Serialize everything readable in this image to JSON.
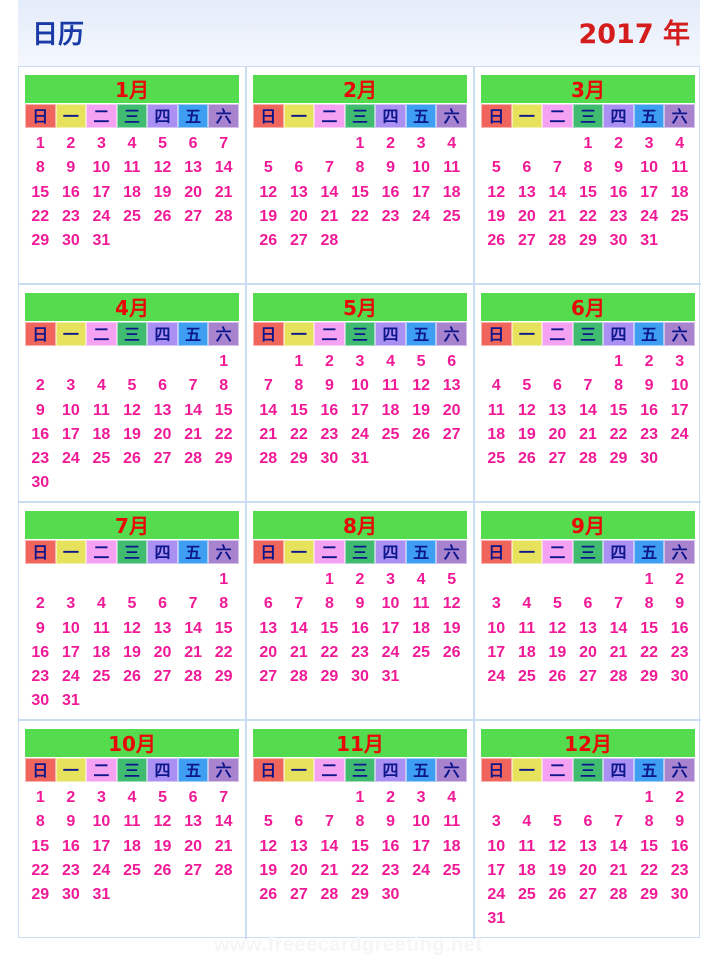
{
  "header": {
    "title_left": "日历",
    "title_right": "2017 年"
  },
  "weekdays": [
    {
      "label": "日",
      "color": "#f0665c"
    },
    {
      "label": "一",
      "color": "#e6e25c"
    },
    {
      "label": "二",
      "color": "#f6a2f2"
    },
    {
      "label": "三",
      "color": "#3fbc70"
    },
    {
      "label": "四",
      "color": "#aa90f2"
    },
    {
      "label": "五",
      "color": "#3e9ef2"
    },
    {
      "label": "六",
      "color": "#a883ce"
    }
  ],
  "months": [
    {
      "name": "1月",
      "first_weekday": 0,
      "days": 31
    },
    {
      "name": "2月",
      "first_weekday": 3,
      "days": 28
    },
    {
      "name": "3月",
      "first_weekday": 3,
      "days": 31
    },
    {
      "name": "4月",
      "first_weekday": 6,
      "days": 30
    },
    {
      "name": "5月",
      "first_weekday": 1,
      "days": 31
    },
    {
      "name": "6月",
      "first_weekday": 4,
      "days": 30
    },
    {
      "name": "7月",
      "first_weekday": 6,
      "days": 31
    },
    {
      "name": "8月",
      "first_weekday": 2,
      "days": 31
    },
    {
      "name": "9月",
      "first_weekday": 5,
      "days": 30
    },
    {
      "name": "10月",
      "first_weekday": 0,
      "days": 31
    },
    {
      "name": "11月",
      "first_weekday": 3,
      "days": 30
    },
    {
      "name": "12月",
      "first_weekday": 5,
      "days": 31
    }
  ],
  "watermark": "www.freeecardgreeting.net"
}
